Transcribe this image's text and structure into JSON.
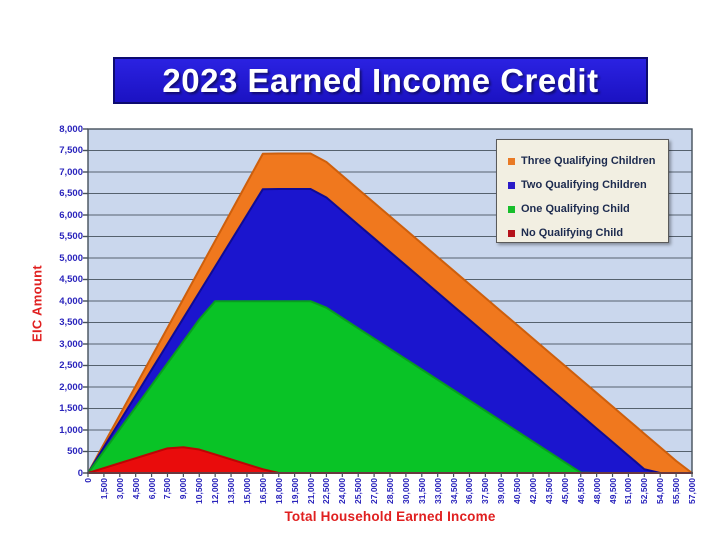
{
  "title": "2023 Earned Income Credit",
  "chart_data": {
    "type": "area",
    "overlapping": true,
    "title": "2023 Earned Income Credit",
    "xlabel": "Total Household Earned Income",
    "ylabel": "EIC Amount",
    "ylim": [
      0,
      8000
    ],
    "y_tick_step": 500,
    "grid": "horizontal",
    "legend_position": "top-right",
    "x": [
      0,
      1500,
      3000,
      4500,
      6000,
      7500,
      9000,
      10500,
      12000,
      13500,
      15000,
      16500,
      18000,
      19500,
      21000,
      22500,
      24000,
      25500,
      27000,
      28500,
      30000,
      31500,
      33000,
      34500,
      36000,
      37500,
      39000,
      40500,
      42000,
      43500,
      45000,
      46500,
      48000,
      49500,
      51000,
      52500,
      54000,
      55500,
      57000
    ],
    "x_tick_labels": [
      "0",
      "1,500",
      "3,000",
      "4,500",
      "6,000",
      "7,500",
      "9,000",
      "10,500",
      "12,000",
      "13,500",
      "15,000",
      "16,500",
      "18,000",
      "19,500",
      "21,000",
      "22,500",
      "24,000",
      "25,500",
      "27,000",
      "28,500",
      "30,000",
      "31,500",
      "33,000",
      "34,500",
      "36,000",
      "37,500",
      "39,000",
      "40,500",
      "42,000",
      "43,500",
      "45,000",
      "46,500",
      "48,000",
      "49,500",
      "51,000",
      "52,500",
      "54,000",
      "55,500",
      "57,000"
    ],
    "y_ticks": [
      0,
      500,
      1000,
      1500,
      2000,
      2500,
      3000,
      3500,
      4000,
      4500,
      5000,
      5500,
      6000,
      6500,
      7000,
      7500,
      8000
    ],
    "y_tick_labels": [
      "0",
      "500",
      "1,000",
      "1,500",
      "2,000",
      "2,500",
      "3,000",
      "3,500",
      "4,000",
      "4,500",
      "5,000",
      "5,500",
      "6,000",
      "6,500",
      "7,000",
      "7,500",
      "8,000"
    ],
    "series": [
      {
        "name": "Three Qualifying Children",
        "color": "#F0781E",
        "stroke": "#CE5F0C",
        "swatch_color": "#E97A25",
        "max_value": 7430,
        "values": [
          0,
          675,
          1350,
          2025,
          2700,
          3375,
          4050,
          4725,
          5400,
          6075,
          6750,
          7425,
          7430,
          7430,
          7430,
          7232,
          6916,
          6600,
          6284,
          5968,
          5653,
          5337,
          5021,
          4705,
          4389,
          4073,
          3757,
          3441,
          3125,
          2809,
          2494,
          2178,
          1862,
          1546,
          1230,
          914,
          598,
          282,
          0
        ]
      },
      {
        "name": "Two Qualifying Children",
        "color": "#1B15CE",
        "stroke": "#0E0A96",
        "swatch_color": "#2A1BC8",
        "max_value": 6604,
        "values": [
          0,
          600,
          1200,
          1800,
          2400,
          3000,
          3600,
          4200,
          4800,
          5400,
          6000,
          6600,
          6604,
          6604,
          6604,
          6406,
          6090,
          5774,
          5458,
          5142,
          4827,
          4511,
          4195,
          3879,
          3563,
          3247,
          2931,
          2615,
          2299,
          1983,
          1668,
          1352,
          1036,
          720,
          404,
          88,
          0,
          0,
          0
        ]
      },
      {
        "name": "One Qualifying Child",
        "color": "#09C326",
        "stroke": "#079E1E",
        "swatch_color": "#17BE2B",
        "max_value": 3995,
        "values": [
          0,
          510,
          1020,
          1530,
          2040,
          2550,
          3060,
          3570,
          3995,
          3995,
          3995,
          3995,
          3995,
          3995,
          3995,
          3845,
          3605,
          3365,
          3126,
          2886,
          2646,
          2407,
          2167,
          1927,
          1688,
          1448,
          1208,
          968,
          729,
          489,
          249,
          10,
          0,
          0,
          0,
          0,
          0,
          0,
          0
        ]
      },
      {
        "name": "No Qualifying Child",
        "color": "#E90C0C",
        "stroke": "#BC0404",
        "swatch_color": "#B5121B",
        "max_value": 600,
        "values": [
          0,
          115,
          230,
          344,
          459,
          574,
          600,
          546,
          432,
          317,
          202,
          87,
          0,
          0,
          0,
          0,
          0,
          0,
          0,
          0,
          0,
          0,
          0,
          0,
          0,
          0,
          0,
          0,
          0,
          0,
          0,
          0,
          0,
          0,
          0,
          0,
          0,
          0,
          0
        ]
      }
    ]
  },
  "colors": {
    "banner_bg": "#211CCE",
    "banner_text": "#FFFFFF",
    "plot_bg": "#CAD7ED",
    "gridline": "#55616E",
    "axis": "#45505B",
    "tick_label": "#2A24BC",
    "axis_title": "#E02020",
    "legend_bg": "#F2EFE2",
    "legend_border": "#5A5A5A",
    "legend_text": "#1D2B4F"
  }
}
